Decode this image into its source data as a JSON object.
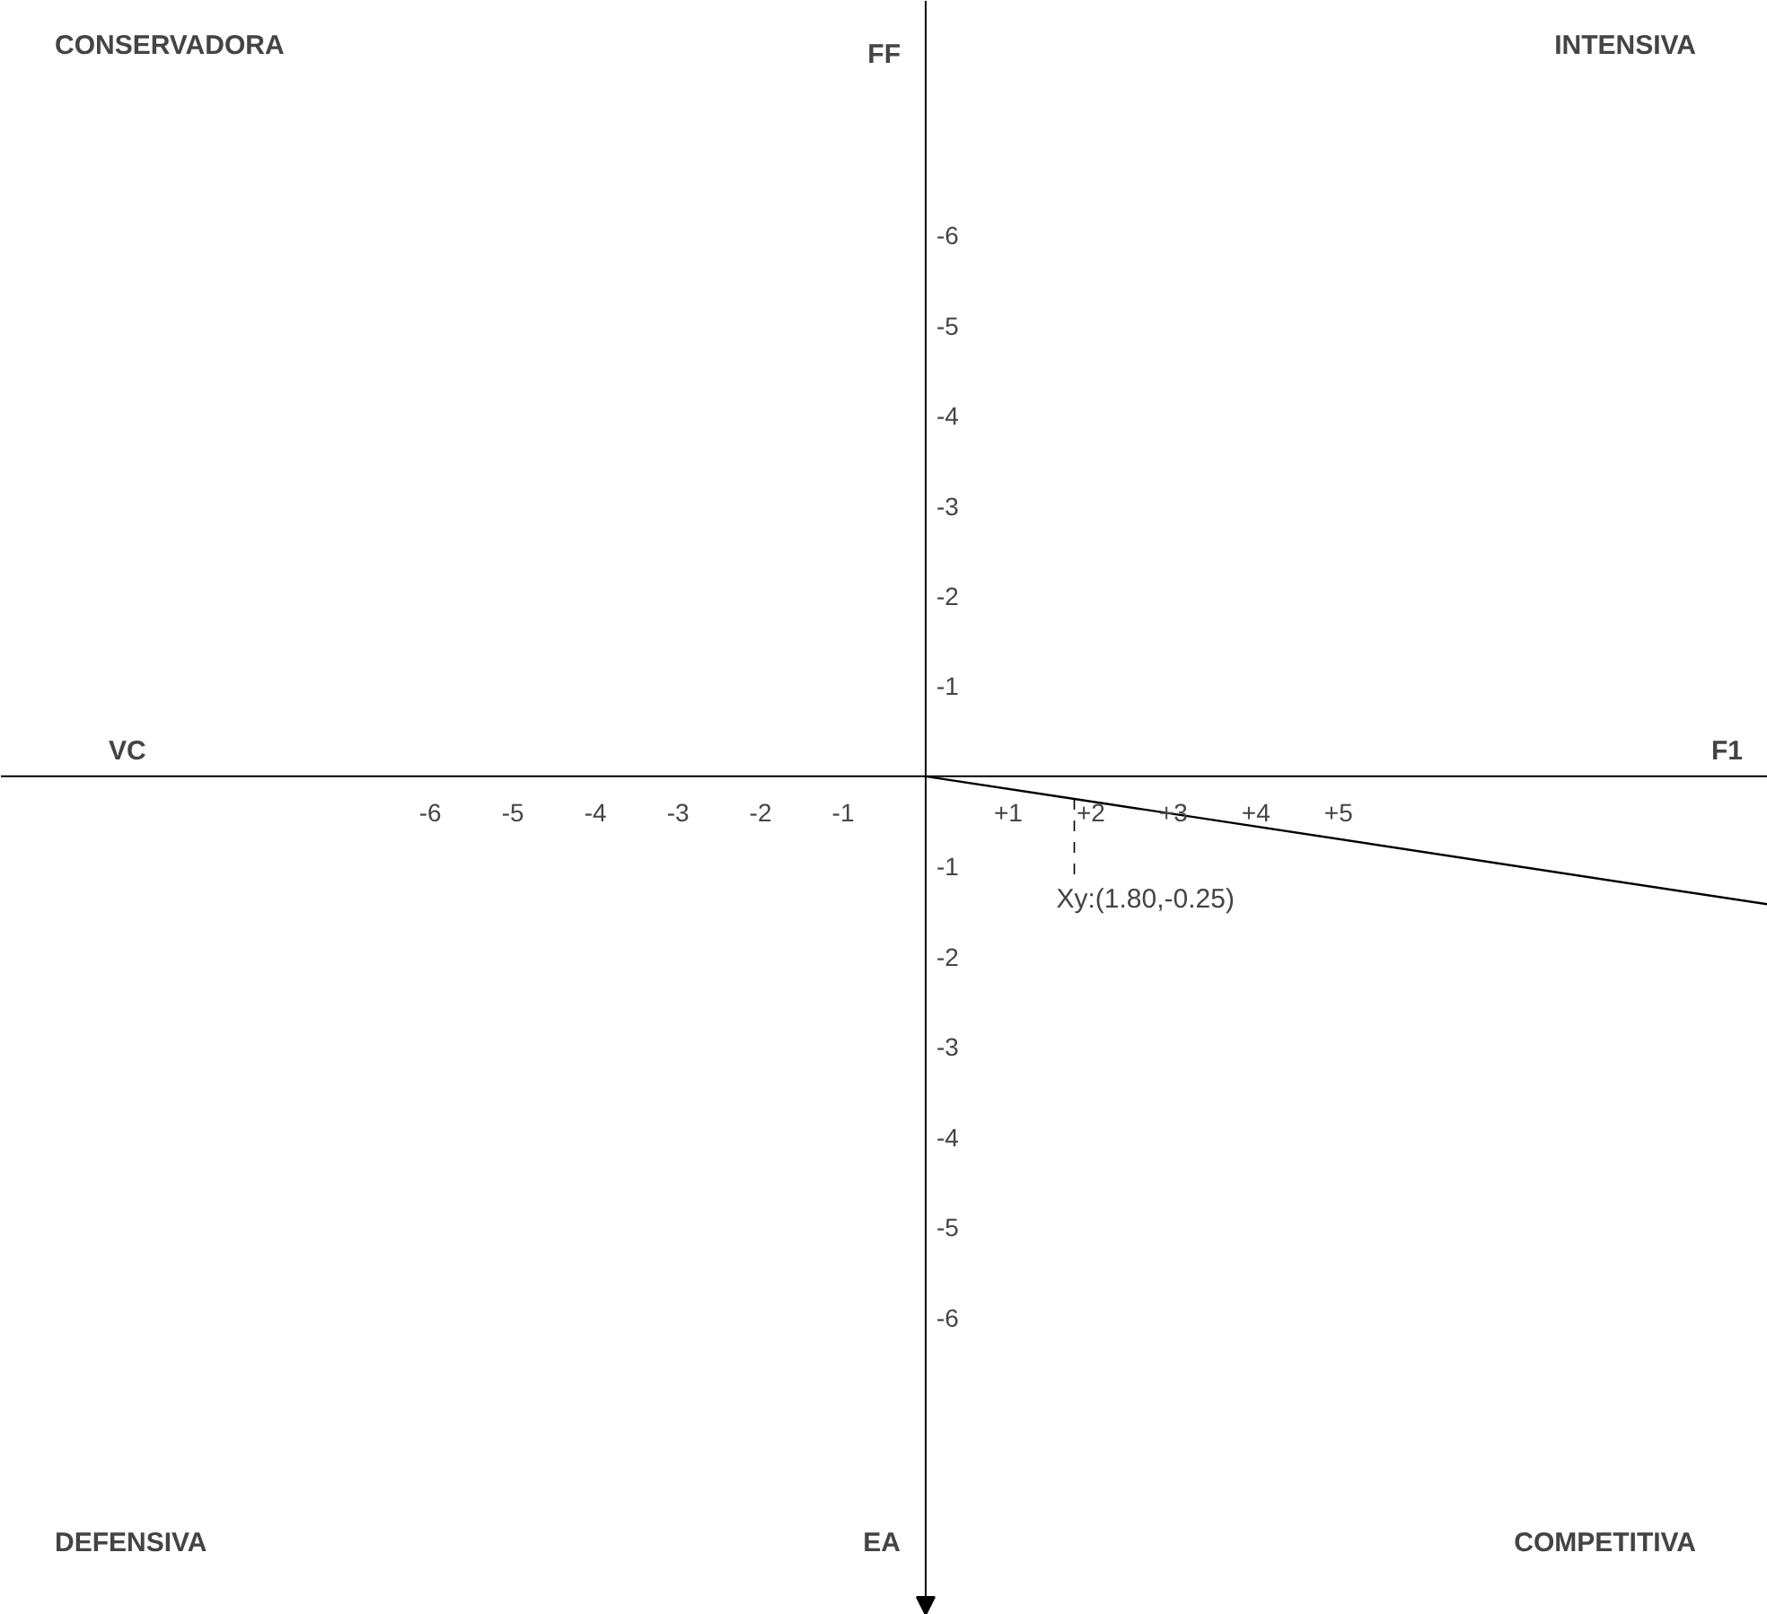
{
  "chart_data": {
    "type": "line",
    "x": [
      0,
      1.8,
      10.2
    ],
    "values": [
      0,
      -0.25,
      -1.42
    ],
    "color": "#000000",
    "xlim": [
      -11.2,
      10.2
    ],
    "ylim": [
      -9.3,
      8.6
    ],
    "y2lim": [
      9.3,
      -8.6
    ],
    "xticks": [
      -6,
      -5,
      -4,
      -3,
      -2,
      -1,
      {
        "value": 1,
        "label": "+1"
      },
      {
        "value": 2,
        "label": "+2"
      },
      {
        "value": 3,
        "label": "+3"
      },
      {
        "value": 4,
        "label": "+4"
      },
      {
        "value": 5,
        "label": "+5"
      }
    ],
    "yticks": [
      -1,
      -2,
      -3,
      -4,
      -5,
      -6
    ],
    "y2ticks": [
      -6,
      -5,
      -4,
      -3,
      -2,
      -1
    ],
    "xlabel": "F1",
    "y2label": "FF",
    "annotations": [
      "CONSERVADORA",
      "INTENSIVA",
      "DEFENSIVA",
      "COMPETITIVA",
      "VC",
      "EA",
      {
        "text": "Xy:(1.80,-0.25)",
        "x": 1.8,
        "y": -0.25
      }
    ],
    "grid": false,
    "marker": "none",
    "line_style": "solid"
  }
}
